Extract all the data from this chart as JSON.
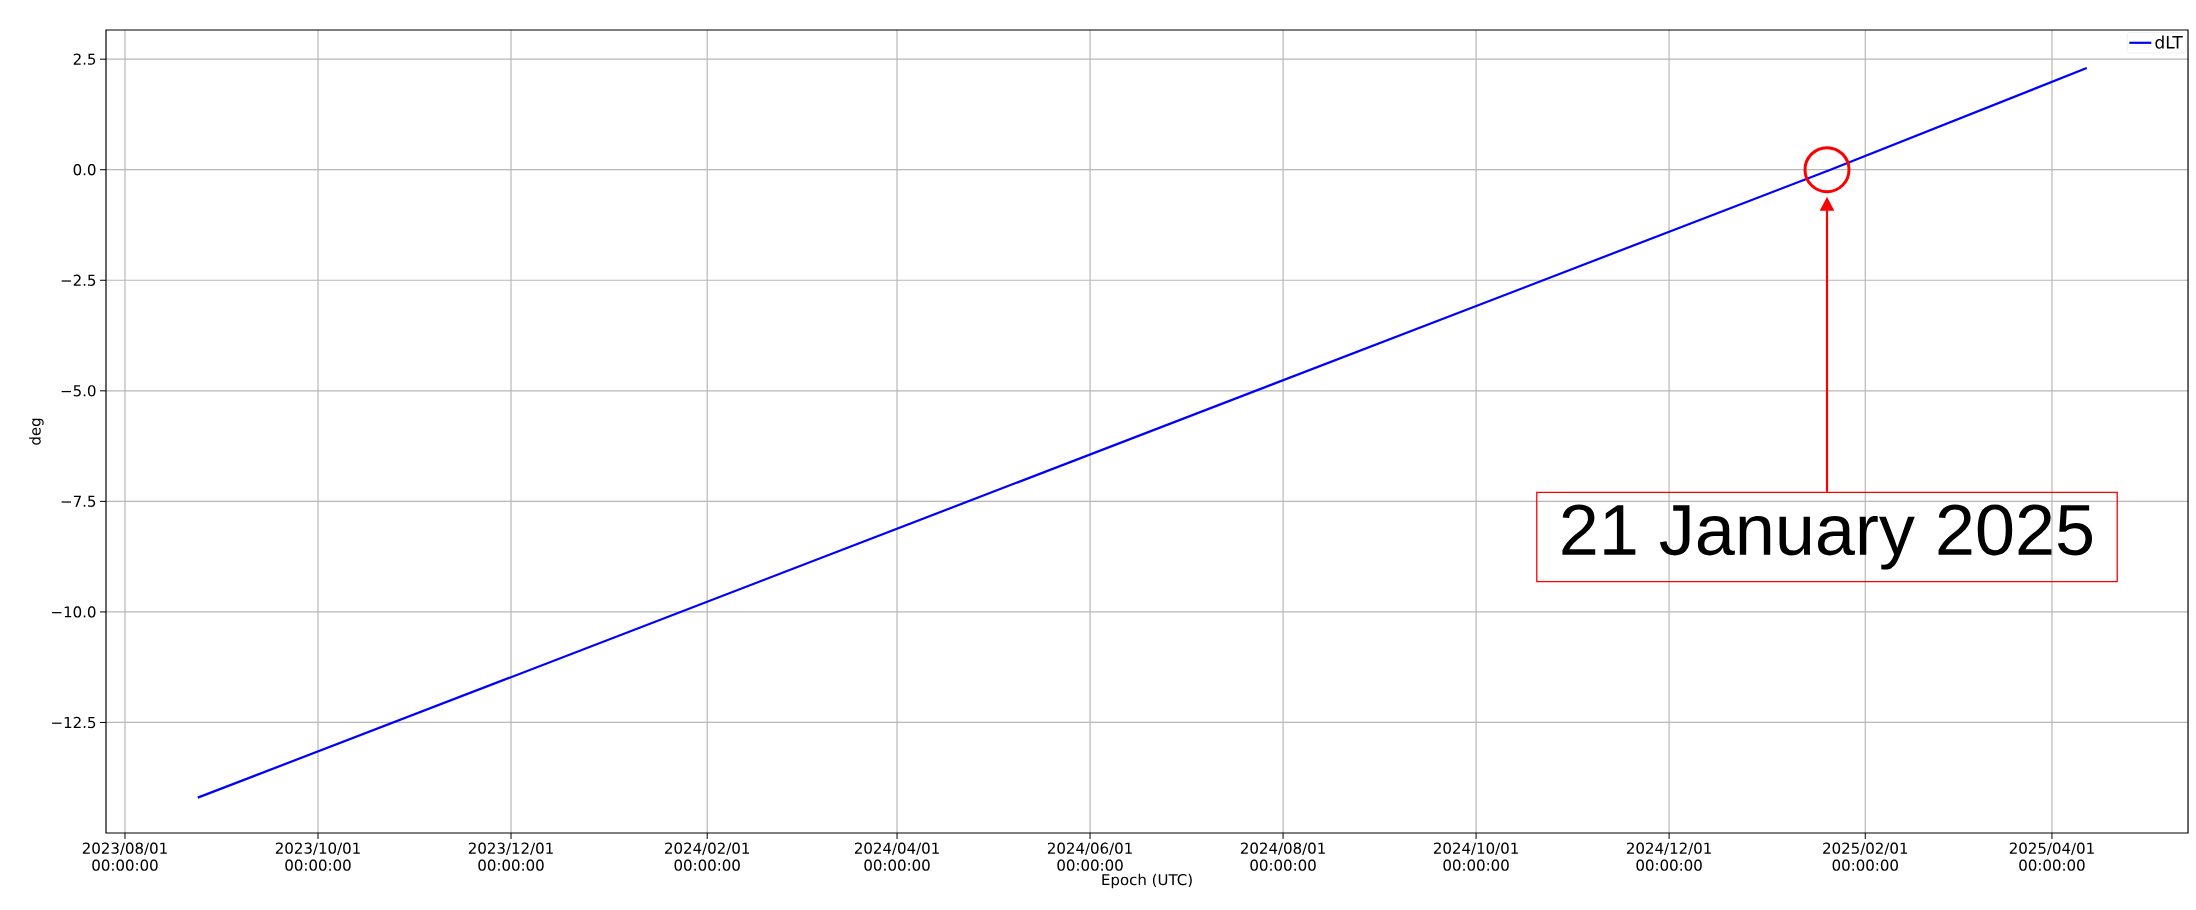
{
  "chart_data": {
    "type": "line",
    "xlabel": "Epoch (UTC)",
    "ylabel": "deg",
    "series": [
      {
        "name": "dLT",
        "color": "#0000ff",
        "x": [
          "2023-08-24",
          "2025-01-21",
          "2025-04-12"
        ],
        "values": [
          -14.2,
          0,
          2.3
        ]
      }
    ],
    "xlim": [
      "2023-07-26",
      "2025-05-14"
    ],
    "xticks": [
      {
        "value": "2023-08-01",
        "label": "2023/08/01 00:00:00"
      },
      {
        "value": "2023-10-01",
        "label": "2023/10/01 00:00:00"
      },
      {
        "value": "2023-12-01",
        "label": "2023/12/01 00:00:00"
      },
      {
        "value": "2024-02-01",
        "label": "2024/02/01 00:00:00"
      },
      {
        "value": "2024-04-01",
        "label": "2024/04/01 00:00:00"
      },
      {
        "value": "2024-06-01",
        "label": "2024/06/01 00:00:00"
      },
      {
        "value": "2024-08-01",
        "label": "2024/08/01 00:00:00"
      },
      {
        "value": "2024-10-01",
        "label": "2024/10/01 00:00:00"
      },
      {
        "value": "2024-12-01",
        "label": "2024/12/01 00:00:00"
      },
      {
        "value": "2025-02-01",
        "label": "2025/02/01 00:00:00"
      },
      {
        "value": "2025-04-01",
        "label": "2025/04/01 00:00:00"
      }
    ],
    "ylim": [
      -15.0,
      3.16
    ],
    "yticks": [
      {
        "value": -12.5,
        "label": "−12.5"
      },
      {
        "value": -10,
        "label": "−10.0"
      },
      {
        "value": -7.5,
        "label": "−7.5"
      },
      {
        "value": -5,
        "label": "−5.0"
      },
      {
        "value": -2.5,
        "label": "−2.5"
      },
      {
        "value": 0,
        "label": "0.0"
      },
      {
        "value": 2.5,
        "label": "2.5"
      }
    ],
    "annotations": [
      "21 January 2025"
    ],
    "grid": true,
    "legend": "top right",
    "marker": "none",
    "line_style": "solid"
  }
}
